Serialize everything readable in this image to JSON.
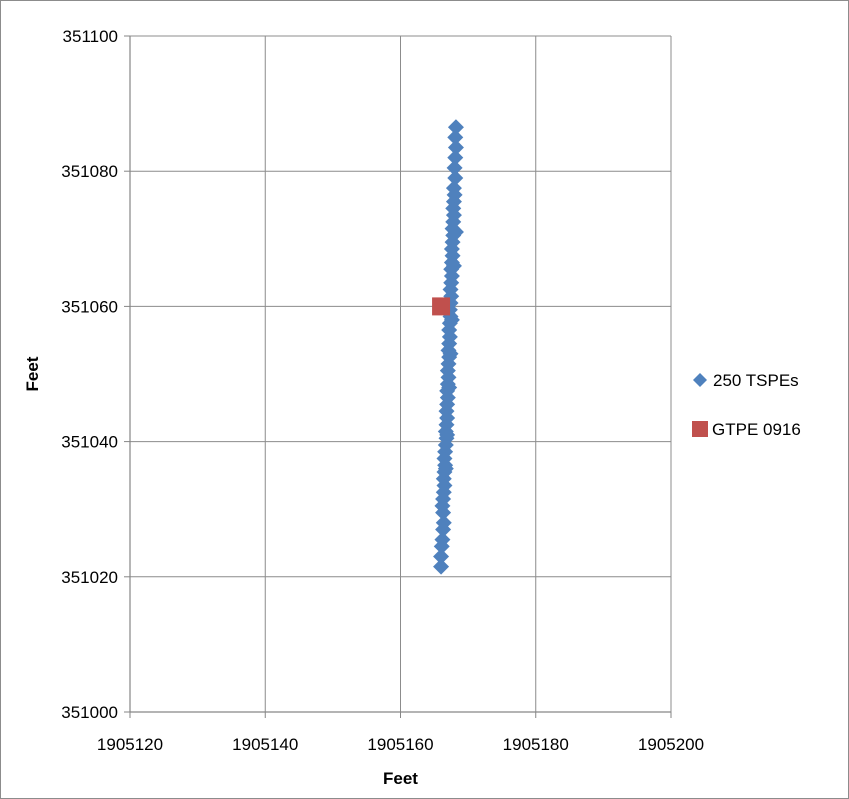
{
  "chart_data": {
    "type": "scatter",
    "title": "",
    "xlabel": "Feet",
    "ylabel": "Feet",
    "xlim": [
      1905120,
      1905200
    ],
    "ylim": [
      351000,
      351100
    ],
    "xticks": [
      1905120,
      1905140,
      1905160,
      1905180,
      1905200
    ],
    "yticks": [
      351000,
      351020,
      351040,
      351060,
      351080,
      351100
    ],
    "x_tick_labels": [
      "1905120",
      "1905140",
      "1905160",
      "1905180",
      "1905200"
    ],
    "y_tick_labels": [
      "351000",
      "351020",
      "351040",
      "351060",
      "351080",
      "351100"
    ],
    "grid": true,
    "legend_position": "right",
    "series": [
      {
        "name": "250 TSPEs",
        "marker": "diamond",
        "color": "#4F81BD",
        "points": [
          [
            1905166.0,
            351021.5
          ],
          [
            1905166.0,
            351023.0
          ],
          [
            1905166.1,
            351024.5
          ],
          [
            1905166.2,
            351025.5
          ],
          [
            1905166.3,
            351027.0
          ],
          [
            1905166.4,
            351028.0
          ],
          [
            1905166.3,
            351029.5
          ],
          [
            1905166.2,
            351030.5
          ],
          [
            1905166.3,
            351031.5
          ],
          [
            1905166.4,
            351032.5
          ],
          [
            1905166.5,
            351033.5
          ],
          [
            1905166.4,
            351034.5
          ],
          [
            1905166.5,
            351035.5
          ],
          [
            1905166.6,
            351036.5
          ],
          [
            1905166.5,
            351037.5
          ],
          [
            1905166.6,
            351038.5
          ],
          [
            1905166.7,
            351039.5
          ],
          [
            1905166.8,
            351040.5
          ],
          [
            1905166.7,
            351041.5
          ],
          [
            1905166.8,
            351042.5
          ],
          [
            1905166.9,
            351043.5
          ],
          [
            1905166.8,
            351044.5
          ],
          [
            1905166.9,
            351045.5
          ],
          [
            1905167.0,
            351046.5
          ],
          [
            1905166.9,
            351047.5
          ],
          [
            1905167.0,
            351048.5
          ],
          [
            1905167.1,
            351049.5
          ],
          [
            1905167.0,
            351050.5
          ],
          [
            1905167.1,
            351051.5
          ],
          [
            1905167.2,
            351052.5
          ],
          [
            1905167.1,
            351053.5
          ],
          [
            1905167.2,
            351054.5
          ],
          [
            1905167.3,
            351055.5
          ],
          [
            1905167.2,
            351056.5
          ],
          [
            1905167.3,
            351057.5
          ],
          [
            1905167.4,
            351058.5
          ],
          [
            1905167.3,
            351059.5
          ],
          [
            1905167.4,
            351060.5
          ],
          [
            1905167.5,
            351061.5
          ],
          [
            1905167.4,
            351062.5
          ],
          [
            1905167.5,
            351063.5
          ],
          [
            1905167.6,
            351064.5
          ],
          [
            1905167.5,
            351065.5
          ],
          [
            1905167.6,
            351066.5
          ],
          [
            1905167.7,
            351067.5
          ],
          [
            1905167.6,
            351068.5
          ],
          [
            1905167.7,
            351069.5
          ],
          [
            1905167.8,
            351070.5
          ],
          [
            1905167.7,
            351071.5
          ],
          [
            1905167.8,
            351072.5
          ],
          [
            1905167.9,
            351073.5
          ],
          [
            1905167.8,
            351074.5
          ],
          [
            1905167.9,
            351075.5
          ],
          [
            1905168.0,
            351076.5
          ],
          [
            1905167.9,
            351077.5
          ],
          [
            1905168.1,
            351079.0
          ],
          [
            1905168.0,
            351080.5
          ],
          [
            1905168.1,
            351082.0
          ],
          [
            1905168.2,
            351083.5
          ],
          [
            1905168.1,
            351085.0
          ],
          [
            1905168.2,
            351086.5
          ],
          [
            1905166.7,
            351036.0
          ],
          [
            1905167.2,
            351048.0
          ],
          [
            1905167.6,
            351058.0
          ],
          [
            1905167.9,
            351066.0
          ],
          [
            1905168.2,
            351071.0
          ],
          [
            1905166.9,
            351041.0
          ],
          [
            1905167.4,
            351053.0
          ]
        ]
      },
      {
        "name": "GTPE 0916",
        "marker": "square",
        "color": "#C0504D",
        "points": [
          [
            1905166.0,
            351060.0
          ]
        ]
      }
    ]
  }
}
